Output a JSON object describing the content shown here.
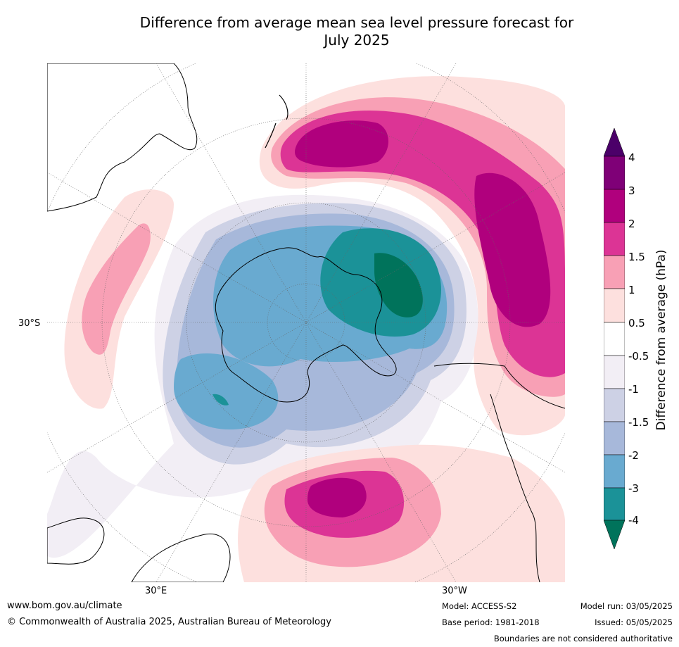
{
  "title_line1": "Difference from average mean sea level pressure forecast for",
  "title_line2": "July 2025",
  "map_labels": {
    "lat": "30°S",
    "lon_east": "30°E",
    "lon_west": "30°W"
  },
  "colorbar": {
    "label": "Difference from average (hPa)",
    "ticks": [
      "4",
      "3",
      "2",
      "1.5",
      "1",
      "0.5",
      "-0.5",
      "-1",
      "-1.5",
      "-2",
      "-3",
      "-4"
    ],
    "colors": [
      "#4b0069",
      "#7f0077",
      "#b0007d",
      "#dc3495",
      "#f8a0b5",
      "#fde0de",
      "#ffffff",
      "#f2eef5",
      "#cdd1e5",
      "#a7b8da",
      "#69aad0",
      "#1b9298",
      "#00735b"
    ]
  },
  "footer": {
    "url": "www.bom.gov.au/climate",
    "copyright": "© Commonwealth of Australia 2025, Australian Bureau of Meteorology",
    "model": "Model: ACCESS-S2",
    "base_period": "Base period: 1981-2018",
    "model_run": "Model run: 03/05/2025",
    "issued": "Issued: 05/05/2025",
    "disclaimer": "Boundaries are not considered authoritative"
  }
}
